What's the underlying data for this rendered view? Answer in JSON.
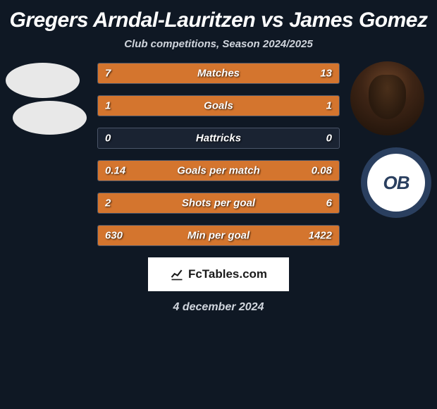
{
  "title": "Gregers Arndal-Lauritzen vs James Gomez",
  "subtitle": "Club competitions, Season 2024/2025",
  "colors": {
    "background": "#0f1824",
    "bar_fill": "#d4752e",
    "bar_bg": "#1a2332",
    "bar_border": "#4a5568",
    "text": "#ffffff",
    "subtext": "#d0d5dd"
  },
  "bars": [
    {
      "label": "Matches",
      "left_val": "7",
      "right_val": "13",
      "left_pct": 35,
      "right_pct": 65
    },
    {
      "label": "Goals",
      "left_val": "1",
      "right_val": "1",
      "left_pct": 50,
      "right_pct": 50
    },
    {
      "label": "Hattricks",
      "left_val": "0",
      "right_val": "0",
      "left_pct": 0,
      "right_pct": 0
    },
    {
      "label": "Goals per match",
      "left_val": "0.14",
      "right_val": "0.08",
      "left_pct": 63.6,
      "right_pct": 36.4
    },
    {
      "label": "Shots per goal",
      "left_val": "2",
      "right_val": "6",
      "left_pct": 25,
      "right_pct": 75
    },
    {
      "label": "Min per goal",
      "left_val": "630",
      "right_val": "1422",
      "left_pct": 30.7,
      "right_pct": 69.3
    }
  ],
  "club_badge_right": "OB",
  "footer": {
    "brand": "FcTables.com",
    "date": "4 december 2024"
  }
}
